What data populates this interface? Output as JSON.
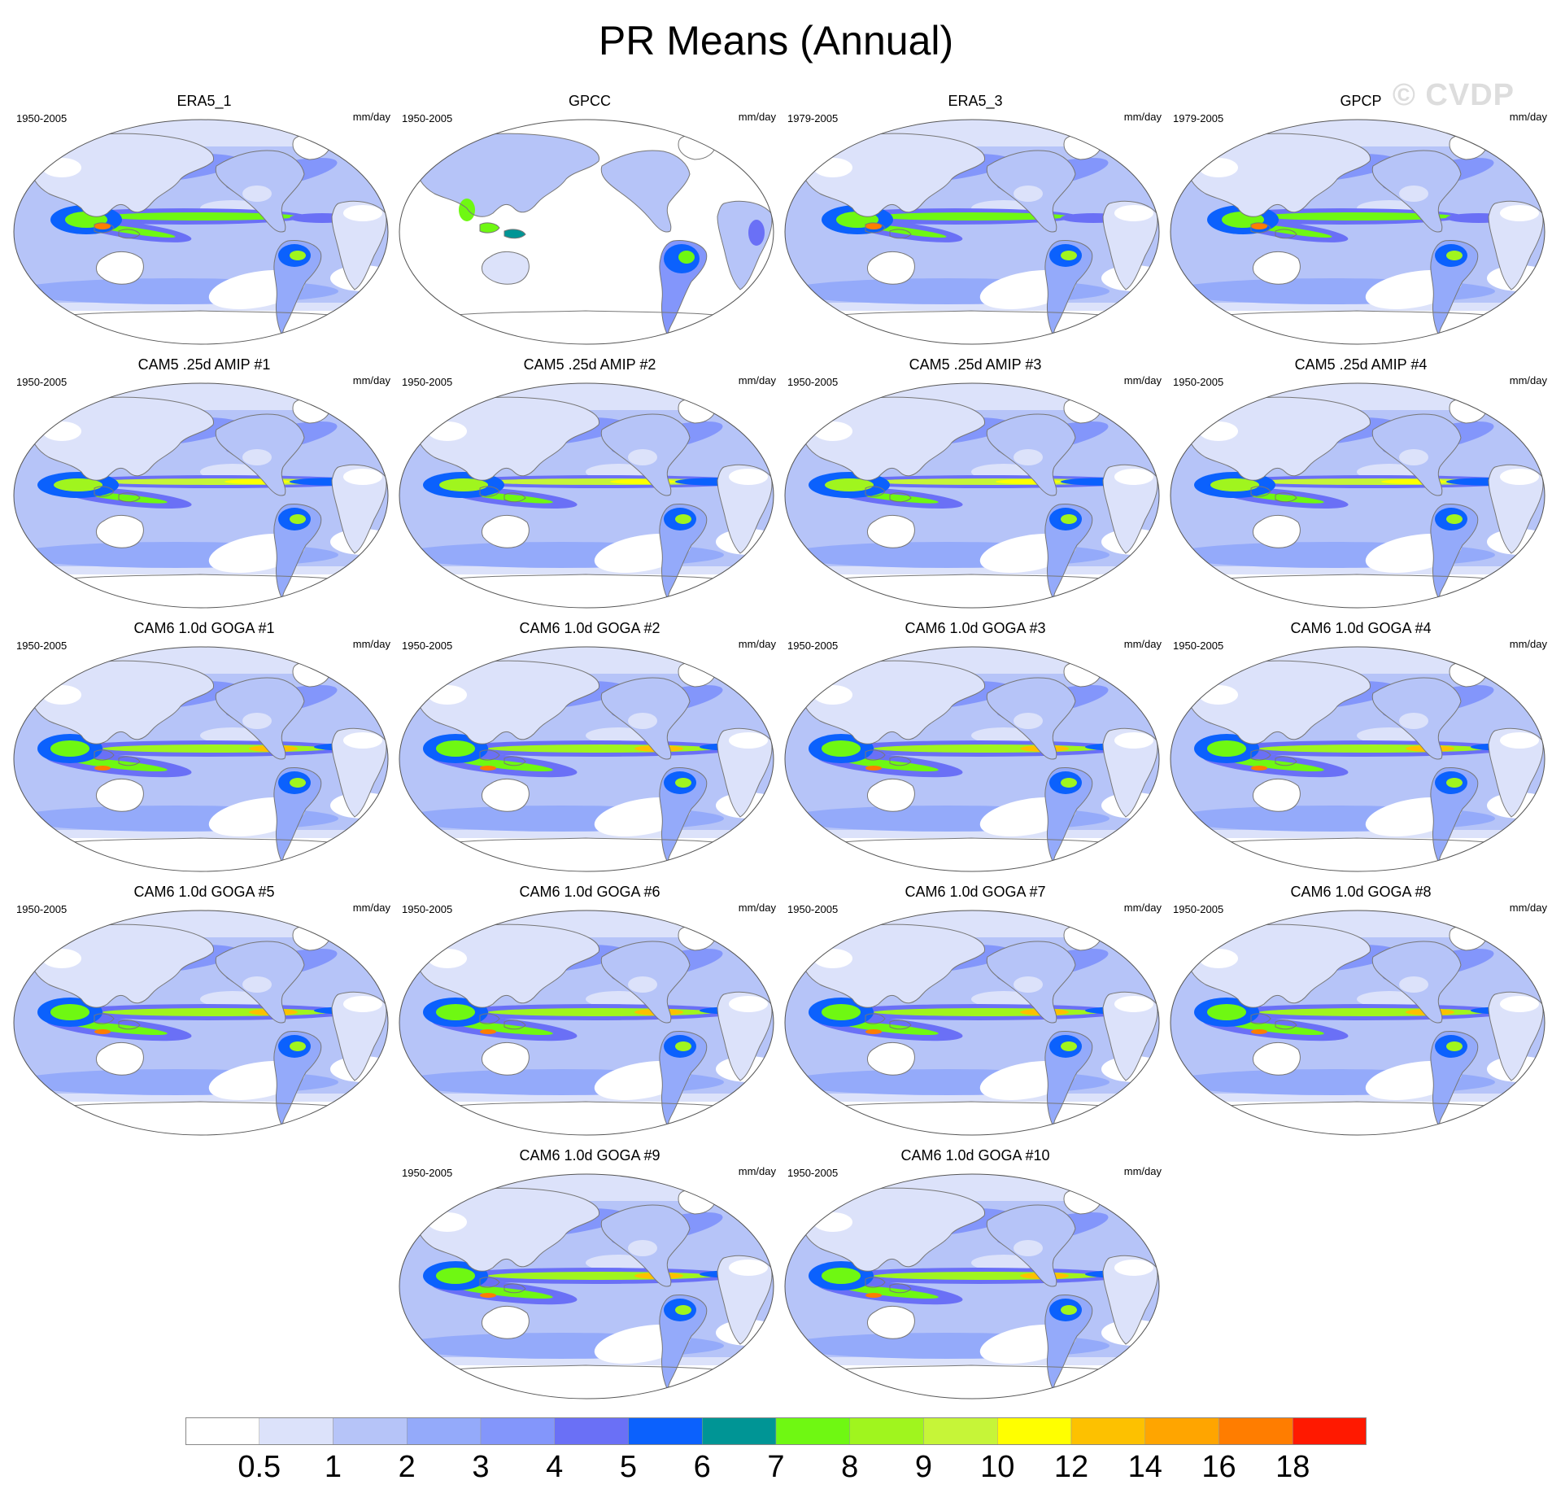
{
  "title": "PR Means (Annual)",
  "watermark": "© CVDP",
  "panels": [
    {
      "title": "ERA5_1",
      "period": "1950-2005",
      "units": "mm/day",
      "type": "obs"
    },
    {
      "title": "GPCC",
      "period": "1950-2005",
      "units": "mm/day",
      "type": "land"
    },
    {
      "title": "ERA5_3",
      "period": "1979-2005",
      "units": "mm/day",
      "type": "obs"
    },
    {
      "title": "GPCP",
      "period": "1979-2005",
      "units": "mm/day",
      "type": "obs"
    },
    {
      "title": "CAM5 .25d AMIP #1",
      "period": "1950-2005",
      "units": "mm/day",
      "type": "amip"
    },
    {
      "title": "CAM5 .25d AMIP #2",
      "period": "1950-2005",
      "units": "mm/day",
      "type": "amip"
    },
    {
      "title": "CAM5 .25d AMIP #3",
      "period": "1950-2005",
      "units": "mm/day",
      "type": "amip"
    },
    {
      "title": "CAM5 .25d AMIP #4",
      "period": "1950-2005",
      "units": "mm/day",
      "type": "amip"
    },
    {
      "title": "CAM6 1.0d GOGA #1",
      "period": "1950-2005",
      "units": "mm/day",
      "type": "goga"
    },
    {
      "title": "CAM6 1.0d GOGA #2",
      "period": "1950-2005",
      "units": "mm/day",
      "type": "goga"
    },
    {
      "title": "CAM6 1.0d GOGA #3",
      "period": "1950-2005",
      "units": "mm/day",
      "type": "goga"
    },
    {
      "title": "CAM6 1.0d GOGA #4",
      "period": "1950-2005",
      "units": "mm/day",
      "type": "goga"
    },
    {
      "title": "CAM6 1.0d GOGA #5",
      "period": "1950-2005",
      "units": "mm/day",
      "type": "goga"
    },
    {
      "title": "CAM6 1.0d GOGA #6",
      "period": "1950-2005",
      "units": "mm/day",
      "type": "goga"
    },
    {
      "title": "CAM6 1.0d GOGA #7",
      "period": "1950-2005",
      "units": "mm/day",
      "type": "goga"
    },
    {
      "title": "CAM6 1.0d GOGA #8",
      "period": "1950-2005",
      "units": "mm/day",
      "type": "goga"
    },
    {
      "title": "CAM6 1.0d GOGA #9",
      "period": "1950-2005",
      "units": "mm/day",
      "type": "goga"
    },
    {
      "title": "CAM6 1.0d GOGA #10",
      "period": "1950-2005",
      "units": "mm/day",
      "type": "goga"
    }
  ],
  "colorbar": {
    "colors": [
      "#ffffff",
      "#dce2fa",
      "#b6c4f8",
      "#94aafa",
      "#8396fb",
      "#6a70f6",
      "#0b61fd",
      "#009595",
      "#6ff812",
      "#a0f51e",
      "#c6f538",
      "#ffff00",
      "#fdc100",
      "#ffa500",
      "#ff7d00",
      "#ff1900"
    ],
    "labels": [
      "0.5",
      "1",
      "2",
      "3",
      "4",
      "5",
      "6",
      "7",
      "8",
      "9",
      "10",
      "12",
      "14",
      "16",
      "18"
    ]
  },
  "land_color": "#ffffff",
  "coast_color": "#777777"
}
